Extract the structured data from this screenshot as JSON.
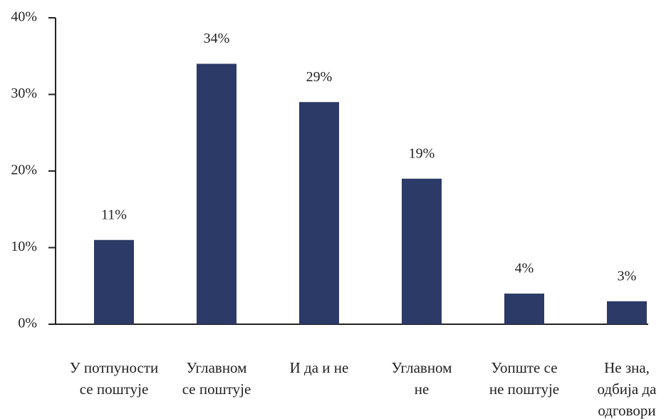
{
  "chart_data": {
    "type": "bar",
    "categories": [
      "У потпуности\nсе поштује",
      "Углавном\nсе поштује",
      "И да и не",
      "Углавном\nне",
      "Уопште се\nне поштује",
      "Не зна,\nодбија да\nодговори"
    ],
    "values": [
      11,
      34,
      29,
      19,
      4,
      3
    ],
    "value_labels": [
      "11%",
      "34%",
      "29%",
      "19%",
      "4%",
      "3%"
    ],
    "color": "#2b3a67",
    "ylim": [
      0,
      40
    ],
    "yticks": [
      {
        "value": 0,
        "label": "0%"
      },
      {
        "value": 10,
        "label": "10%"
      },
      {
        "value": 20,
        "label": "20%"
      },
      {
        "value": 30,
        "label": "30%"
      },
      {
        "value": 40,
        "label": "40%"
      }
    ]
  }
}
